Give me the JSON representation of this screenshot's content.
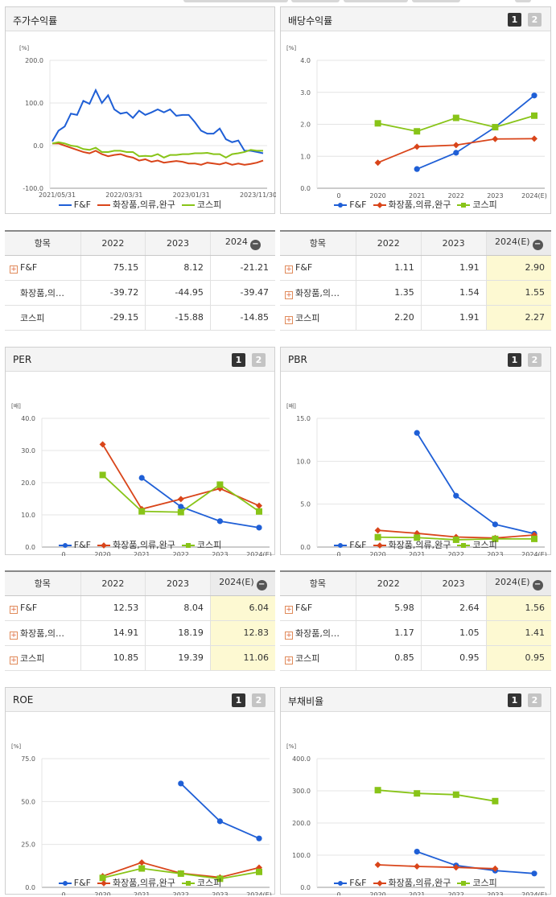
{
  "colors": {
    "ff": "#1f5fd6",
    "cos": "#d9451a",
    "kospi": "#88c418"
  },
  "legend": {
    "ff": "F&F",
    "cos": "화장품,의류,완구",
    "kospi": "코스피"
  },
  "panels": {
    "stock": {
      "title": "주가수익률",
      "unit": "[%]"
    },
    "div": {
      "title": "배당수익률",
      "btn1": "1",
      "btn2": "2",
      "unit": "[%]"
    },
    "per": {
      "title": "PER",
      "btn1": "1",
      "btn2": "2",
      "unit": "[배]"
    },
    "pbr": {
      "title": "PBR",
      "btn1": "1",
      "btn2": "2",
      "unit": "[배]"
    },
    "roe": {
      "title": "ROE",
      "btn1": "1",
      "btn2": "2",
      "unit": "[%]"
    },
    "debt": {
      "title": "부채비율",
      "btn1": "1",
      "btn2": "2",
      "unit": "[%]"
    }
  },
  "tables": {
    "stock": {
      "headers": [
        "항목",
        "2022",
        "2023",
        "2024"
      ],
      "rows": [
        {
          "name": "F&F",
          "plus": true,
          "values": [
            "75.15",
            "8.12",
            "-21.21"
          ]
        },
        {
          "name": "화장품,의…",
          "plus": false,
          "values": [
            "-39.72",
            "-44.95",
            "-39.47"
          ]
        },
        {
          "name": "코스피",
          "plus": false,
          "values": [
            "-29.15",
            "-15.88",
            "-14.85"
          ]
        }
      ]
    },
    "div": {
      "headers": [
        "항목",
        "2022",
        "2023",
        "2024(E)"
      ],
      "rows": [
        {
          "name": "F&F",
          "plus": true,
          "values": [
            "1.11",
            "1.91",
            "2.90"
          ]
        },
        {
          "name": "화장품,의…",
          "plus": true,
          "values": [
            "1.35",
            "1.54",
            "1.55"
          ]
        },
        {
          "name": "코스피",
          "plus": true,
          "values": [
            "2.20",
            "1.91",
            "2.27"
          ]
        }
      ]
    },
    "per": {
      "headers": [
        "항목",
        "2022",
        "2023",
        "2024(E)"
      ],
      "rows": [
        {
          "name": "F&F",
          "plus": true,
          "values": [
            "12.53",
            "8.04",
            "6.04"
          ]
        },
        {
          "name": "화장품,의…",
          "plus": true,
          "values": [
            "14.91",
            "18.19",
            "12.83"
          ]
        },
        {
          "name": "코스피",
          "plus": true,
          "values": [
            "10.85",
            "19.39",
            "11.06"
          ]
        }
      ]
    },
    "pbr": {
      "headers": [
        "항목",
        "2022",
        "2023",
        "2024(E)"
      ],
      "rows": [
        {
          "name": "F&F",
          "plus": true,
          "values": [
            "5.98",
            "2.64",
            "1.56"
          ]
        },
        {
          "name": "화장품,의…",
          "plus": true,
          "values": [
            "1.17",
            "1.05",
            "1.41"
          ]
        },
        {
          "name": "코스피",
          "plus": true,
          "values": [
            "0.85",
            "0.95",
            "0.95"
          ]
        }
      ]
    }
  },
  "chart_data": [
    {
      "id": "stock",
      "type": "line",
      "ylim": [
        -100,
        200
      ],
      "yticks": [
        "200.0",
        "100.0",
        "0.0",
        "-100.0"
      ],
      "x_labels": [
        "2021/05/31",
        "2022/03/31",
        "2023/01/31",
        "2023/11/30"
      ],
      "series": [
        {
          "name": "F&F",
          "values": [
            10,
            35,
            45,
            75,
            72,
            105,
            98,
            130,
            100,
            118,
            85,
            75,
            78,
            65,
            82,
            72,
            78,
            85,
            78,
            85,
            70,
            72,
            72,
            55,
            35,
            28,
            28,
            40,
            15,
            8,
            12,
            -12,
            -12,
            -15,
            -18
          ]
        },
        {
          "name": "화장품,의류,완구",
          "values": [
            5,
            5,
            0,
            -5,
            -10,
            -15,
            -18,
            -12,
            -20,
            -25,
            -22,
            -20,
            -25,
            -28,
            -35,
            -32,
            -38,
            -35,
            -40,
            -38,
            -36,
            -38,
            -42,
            -42,
            -45,
            -40,
            -42,
            -44,
            -40,
            -45,
            -42,
            -45,
            -43,
            -40,
            -35
          ]
        },
        {
          "name": "코스피",
          "values": [
            5,
            8,
            5,
            0,
            -2,
            -8,
            -10,
            -5,
            -15,
            -15,
            -12,
            -12,
            -15,
            -15,
            -25,
            -24,
            -25,
            -20,
            -28,
            -22,
            -22,
            -20,
            -20,
            -18,
            -18,
            -17,
            -20,
            -20,
            -28,
            -20,
            -18,
            -15,
            -10,
            -12,
            -12
          ]
        }
      ]
    },
    {
      "id": "div",
      "type": "line",
      "ylim": [
        0,
        4
      ],
      "yticks": [
        "4.0",
        "3.0",
        "2.0",
        "1.0",
        "0.0"
      ],
      "x_labels": [
        "0",
        "2020",
        "2021",
        "2022",
        "2023",
        "2024(E)"
      ],
      "series": [
        {
          "name": "F&F",
          "values": [
            null,
            null,
            0.6,
            1.11,
            1.91,
            2.9
          ]
        },
        {
          "name": "화장품,의류,완구",
          "values": [
            null,
            0.8,
            1.3,
            1.35,
            1.54,
            1.55
          ]
        },
        {
          "name": "코스피",
          "values": [
            null,
            2.03,
            1.78,
            2.2,
            1.91,
            2.27
          ]
        }
      ]
    },
    {
      "id": "per",
      "type": "line",
      "ylim": [
        0,
        40
      ],
      "yticks": [
        "40.0",
        "30.0",
        "20.0",
        "10.0",
        "0.0"
      ],
      "x_labels": [
        "0",
        "2020",
        "2021",
        "2022",
        "2023",
        "2024(E)"
      ],
      "series": [
        {
          "name": "F&F",
          "values": [
            null,
            null,
            21.5,
            12.53,
            8.04,
            6.04
          ]
        },
        {
          "name": "화장품,의류,완구",
          "values": [
            null,
            31.9,
            11.8,
            14.91,
            18.19,
            12.83
          ]
        },
        {
          "name": "코스피",
          "values": [
            null,
            22.4,
            11.1,
            10.85,
            19.39,
            11.06
          ]
        }
      ]
    },
    {
      "id": "pbr",
      "type": "line",
      "ylim": [
        0,
        15
      ],
      "yticks": [
        "15.0",
        "10.0",
        "5.0",
        "0.0"
      ],
      "x_labels": [
        "0",
        "2020",
        "2021",
        "2022",
        "2023",
        "2024(E)"
      ],
      "series": [
        {
          "name": "F&F",
          "values": [
            null,
            null,
            13.3,
            5.98,
            2.64,
            1.56
          ]
        },
        {
          "name": "화장품,의류,완구",
          "values": [
            null,
            1.95,
            1.6,
            1.17,
            1.05,
            1.41
          ]
        },
        {
          "name": "코스피",
          "values": [
            null,
            1.15,
            1.1,
            0.85,
            0.95,
            0.95
          ]
        }
      ]
    },
    {
      "id": "roe",
      "type": "line",
      "ylim": [
        0,
        75
      ],
      "yticks": [
        "75.0",
        "50.0",
        "25.0",
        "0.0"
      ],
      "x_labels": [
        "0",
        "2020",
        "2021",
        "2022",
        "2023",
        "2024(E)"
      ],
      "series": [
        {
          "name": "F&F",
          "values": [
            null,
            null,
            null,
            60.5,
            38.5,
            28.5
          ]
        },
        {
          "name": "화장품,의류,완구",
          "values": [
            null,
            6.5,
            14.5,
            8.2,
            5.8,
            11.5
          ]
        },
        {
          "name": "코스피",
          "values": [
            null,
            5.5,
            11,
            8,
            5,
            9
          ]
        }
      ]
    },
    {
      "id": "debt",
      "type": "line",
      "ylim": [
        0,
        400
      ],
      "yticks": [
        "400.0",
        "300.0",
        "200.0",
        "100.0",
        "0.0"
      ],
      "x_labels": [
        "0",
        "2020",
        "2021",
        "2022",
        "2023",
        "2024(E)"
      ],
      "series": [
        {
          "name": "F&F",
          "values": [
            null,
            null,
            111,
            68,
            52,
            43
          ]
        },
        {
          "name": "화장품,의류,완구",
          "values": [
            null,
            70,
            65,
            62,
            58,
            null
          ]
        },
        {
          "name": "코스피",
          "values": [
            null,
            302,
            292,
            288,
            268,
            null
          ]
        }
      ]
    }
  ]
}
